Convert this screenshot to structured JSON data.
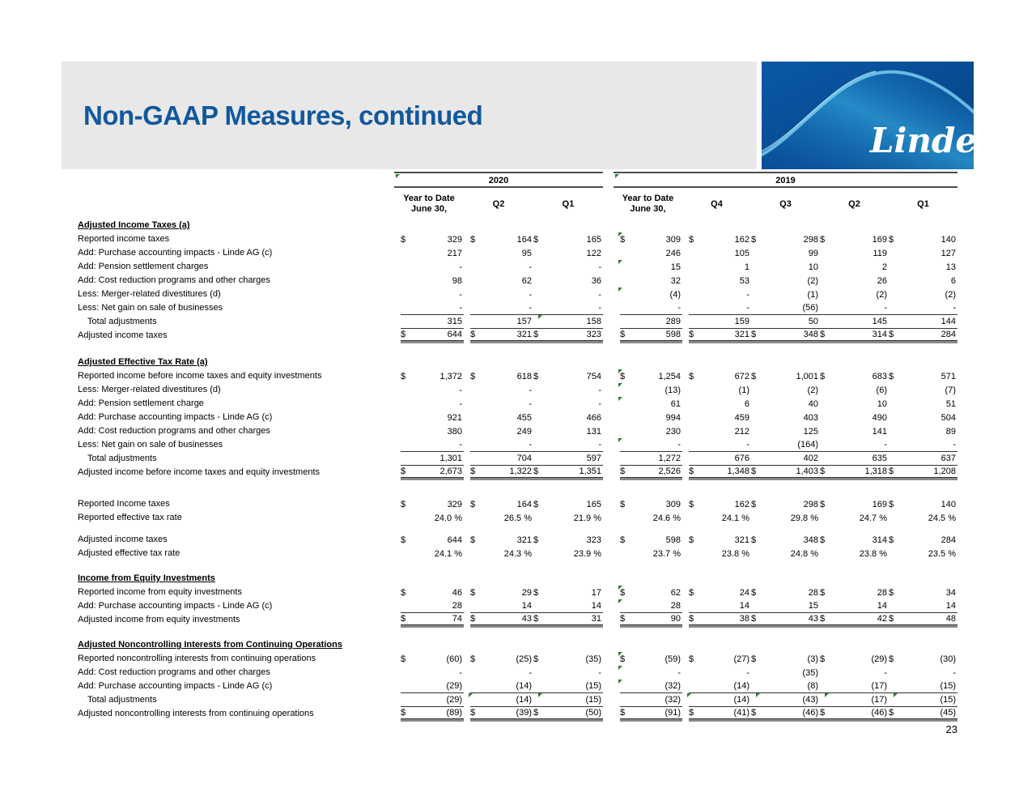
{
  "slide": {
    "title": "Non-GAAP Measures, continued",
    "page_number": "23",
    "logo_text": "Linde",
    "colors": {
      "title_blue": "#11589E",
      "banner_gray": "#E8E8E8",
      "logo_blue": "#07519C",
      "logo_wave_light": "#6FCBF0",
      "comment_marker_green": "#2E7D32"
    }
  },
  "table": {
    "groups": [
      {
        "label": "2020",
        "marker": true
      },
      {
        "label": "2019",
        "marker": true
      }
    ],
    "columns": [
      {
        "group": "2020",
        "label": "Year to Date\nJune 30,"
      },
      {
        "group": "2020",
        "label": "Q2"
      },
      {
        "group": "2020",
        "label": "Q1"
      },
      {
        "group": "2019",
        "label": "Year to Date\nJune 30,"
      },
      {
        "group": "2019",
        "label": "Q4"
      },
      {
        "group": "2019",
        "label": "Q3"
      },
      {
        "group": "2019",
        "label": "Q2"
      },
      {
        "group": "2019",
        "label": "Q1"
      }
    ],
    "sections": [
      {
        "title": "Adjusted Income Taxes (a)",
        "rows": [
          {
            "label": "Reported income taxes",
            "dollar": true,
            "values": [
              "329",
              "164",
              "165",
              "309",
              "162",
              "298",
              "169",
              "140"
            ],
            "markers": [
              3
            ]
          },
          {
            "label": "Add: Purchase accounting impacts - Linde AG (c)",
            "values": [
              "217",
              "95",
              "122",
              "246",
              "105",
              "99",
              "119",
              "127"
            ]
          },
          {
            "label": "Add: Pension settlement charges",
            "values": [
              "-",
              "-",
              "-",
              "15",
              "1",
              "10",
              "2",
              "13"
            ],
            "markers": [
              3
            ]
          },
          {
            "label": "Add: Cost reduction programs and other charges",
            "values": [
              "98",
              "62",
              "36",
              "32",
              "53",
              "(2)",
              "26",
              "6"
            ]
          },
          {
            "label": "Less: Merger-related divestitures (d)",
            "values": [
              "-",
              "-",
              "-",
              "(4)",
              "-",
              "(1)",
              "(2)",
              "(2)"
            ],
            "markers": [
              3
            ]
          },
          {
            "label": "Less: Net gain on sale of businesses",
            "values": [
              "-",
              "-",
              "-",
              "-",
              "-",
              "(56)",
              "-",
              "-"
            ],
            "underline": "single"
          },
          {
            "label": "Total adjustments",
            "indent": true,
            "values": [
              "315",
              "157",
              "158",
              "289",
              "159",
              "50",
              "145",
              "144"
            ],
            "underline": "single",
            "markers": [
              2
            ]
          },
          {
            "label": "Adjusted income taxes",
            "dollar": true,
            "values": [
              "644",
              "321",
              "323",
              "598",
              "321",
              "348",
              "314",
              "284"
            ],
            "underline": "double"
          }
        ]
      },
      {
        "title": "Adjusted Effective Tax Rate (a)",
        "rows": [
          {
            "label": "Reported income before income taxes and equity investments",
            "dollar": true,
            "values": [
              "1,372",
              "618",
              "754",
              "1,254",
              "672",
              "1,001",
              "683",
              "571"
            ],
            "markers": [
              3
            ]
          },
          {
            "label": "Less: Merger-related divestitures (d)",
            "values": [
              "-",
              "-",
              "-",
              "(13)",
              "(1)",
              "(2)",
              "(6)",
              "(7)"
            ],
            "markers": [
              3
            ]
          },
          {
            "label": "Add: Pension settlement charge",
            "values": [
              "-",
              "-",
              "-",
              "61",
              "6",
              "40",
              "10",
              "51"
            ],
            "markers": [
              3
            ]
          },
          {
            "label": "Add: Purchase accounting impacts - Linde AG (c)",
            "values": [
              "921",
              "455",
              "466",
              "994",
              "459",
              "403",
              "490",
              "504"
            ]
          },
          {
            "label": "Add:  Cost reduction programs and other charges",
            "values": [
              "380",
              "249",
              "131",
              "230",
              "212",
              "125",
              "141",
              "89"
            ]
          },
          {
            "label": "Less: Net gain on sale of businesses",
            "values": [
              "-",
              "-",
              "-",
              "-",
              "-",
              "(164)",
              "-",
              "-"
            ],
            "underline": "single",
            "markers": [
              3
            ]
          },
          {
            "label": "Total adjustments",
            "indent": true,
            "values": [
              "1,301",
              "704",
              "597",
              "1,272",
              "676",
              "402",
              "635",
              "637"
            ],
            "underline": "single"
          },
          {
            "label": "Adjusted income before income taxes and equity investments",
            "dollar": true,
            "values": [
              "2,673",
              "1,322",
              "1,351",
              "2,526",
              "1,348",
              "1,403",
              "1,318",
              "1,208"
            ],
            "underline": "double"
          }
        ]
      },
      {
        "rows": [
          {
            "label": "Reported Income taxes",
            "dollar": true,
            "values": [
              "329",
              "164",
              "165",
              "309",
              "162",
              "298",
              "169",
              "140"
            ]
          },
          {
            "label": "Reported effective tax rate",
            "values": [
              "24.0 %",
              "26.5 %",
              "21.9 %",
              "24.6 %",
              "24.1 %",
              "29.8 %",
              "24.7 %",
              "24.5 %"
            ]
          }
        ]
      },
      {
        "rows": [
          {
            "label": "Adjusted income taxes",
            "dollar": true,
            "values": [
              "644",
              "321",
              "323",
              "598",
              "321",
              "348",
              "314",
              "284"
            ]
          },
          {
            "label": "Adjusted effective tax rate",
            "values": [
              "24.1 %",
              "24.3 %",
              "23.9 %",
              "23.7 %",
              "23.8 %",
              "24.8 %",
              "23.8 %",
              "23.5 %"
            ]
          }
        ]
      },
      {
        "title": "Income from Equity Investments",
        "rows": [
          {
            "label": "Reported income from equity investments",
            "dollar": true,
            "values": [
              "46",
              "29",
              "17",
              "62",
              "24",
              "28",
              "28",
              "34"
            ],
            "markers": [
              3
            ]
          },
          {
            "label": "Add: Purchase accounting impacts - Linde AG (c)",
            "values": [
              "28",
              "14",
              "14",
              "28",
              "14",
              "15",
              "14",
              "14"
            ],
            "underline": "single",
            "markers": [
              3
            ]
          },
          {
            "label": "Adjusted income from equity investments",
            "dollar": true,
            "values": [
              "74",
              "43",
              "31",
              "90",
              "38",
              "43",
              "42",
              "48"
            ],
            "underline": "double"
          }
        ]
      },
      {
        "title": "Adjusted Noncontrolling Interests from Continuing Operations",
        "rows": [
          {
            "label": "Reported noncontrolling interests from continuing operations",
            "dollar": true,
            "values": [
              "(60)",
              "(25)",
              "(35)",
              "(59)",
              "(27)",
              "(3)",
              "(29)",
              "(30)"
            ],
            "markers": [
              3
            ]
          },
          {
            "label": "Add: Cost reduction programs and other charges",
            "values": [
              "-",
              "-",
              "-",
              "-",
              "-",
              "(35)",
              "-",
              "-"
            ],
            "markers": [
              3
            ]
          },
          {
            "label": "Add: Purchase accounting impacts - Linde AG (c)",
            "values": [
              "(29)",
              "(14)",
              "(15)",
              "(32)",
              "(14)",
              "(8)",
              "(17)",
              "(15)"
            ],
            "underline": "single",
            "markers": [
              3
            ]
          },
          {
            "label": "Total adjustments",
            "indent": true,
            "values": [
              "(29)",
              "(14)",
              "(15)",
              "(32)",
              "(14)",
              "(43)",
              "(17)",
              "(15)"
            ],
            "underline": "single",
            "markers": [
              1,
              2,
              4,
              5,
              6,
              7
            ]
          },
          {
            "label": "Adjusted noncontrolling interests from continuing operations",
            "dollar": true,
            "values": [
              "(89)",
              "(39)",
              "(50)",
              "(91)",
              "(41)",
              "(46)",
              "(46)",
              "(45)"
            ],
            "underline": "double"
          }
        ]
      }
    ]
  }
}
